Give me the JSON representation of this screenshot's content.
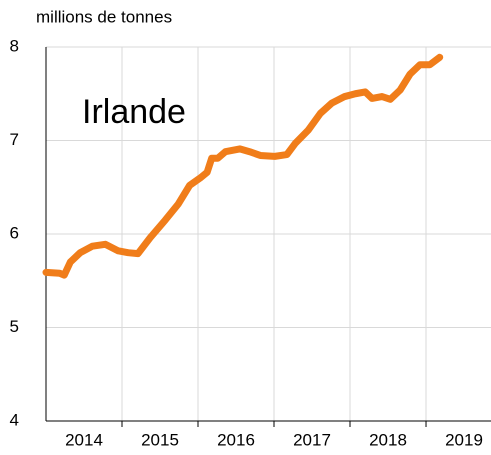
{
  "chart_data": {
    "type": "line",
    "y_label": "millions de tonnes",
    "x": [
      2013.5,
      2013.68,
      2013.74,
      2013.82,
      2013.95,
      2014.11,
      2014.28,
      2014.45,
      2014.58,
      2014.71,
      2014.87,
      2015.07,
      2015.24,
      2015.39,
      2015.53,
      2015.62,
      2015.68,
      2015.76,
      2015.86,
      2016.05,
      2016.18,
      2016.32,
      2016.51,
      2016.67,
      2016.78,
      2016.95,
      2017.11,
      2017.26,
      2017.43,
      2017.57,
      2017.7,
      2017.79,
      2017.92,
      2018.03,
      2018.16,
      2018.29,
      2018.42,
      2018.55,
      2018.68
    ],
    "series": [
      {
        "name": "Irlande",
        "color": "#f07d1a",
        "values": [
          5.59,
          5.58,
          5.56,
          5.7,
          5.8,
          5.87,
          5.89,
          5.82,
          5.8,
          5.79,
          5.96,
          6.15,
          6.32,
          6.52,
          6.6,
          6.66,
          6.81,
          6.81,
          6.88,
          6.91,
          6.88,
          6.84,
          6.83,
          6.85,
          6.97,
          7.11,
          7.29,
          7.4,
          7.47,
          7.5,
          7.52,
          7.45,
          7.47,
          7.44,
          7.54,
          7.71,
          7.81,
          7.81,
          7.89
        ]
      }
    ],
    "xlim": [
      2013.5,
      2019.355
    ],
    "xticks": [
      2014,
      2015,
      2016,
      2017,
      2018,
      2019
    ],
    "ylim": [
      4,
      8
    ],
    "yticks": [
      4,
      5,
      6,
      7,
      8
    ],
    "grid": true
  }
}
